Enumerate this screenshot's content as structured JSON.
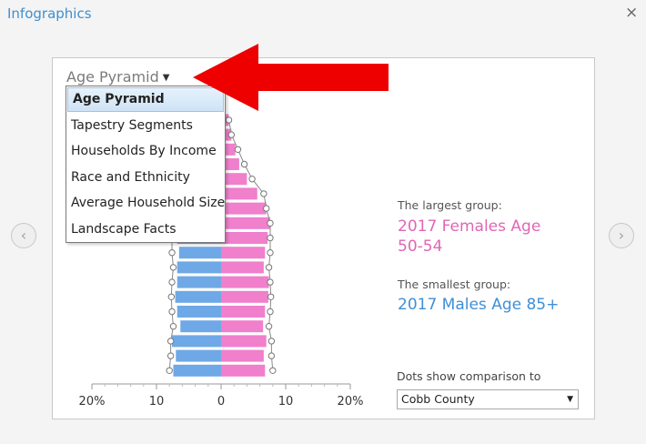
{
  "window": {
    "title": "Infographics",
    "close_glyph": "×"
  },
  "nav": {
    "prev_glyph": "‹",
    "next_glyph": "›"
  },
  "selector": {
    "value": "Age Pyramid",
    "caret": "▼"
  },
  "dropdown": {
    "options": [
      "Age Pyramid",
      "Tapestry Segments",
      "Households By Income",
      "Race and Ethnicity",
      "Average Household Size",
      "Landscape Facts"
    ],
    "selected_index": 0
  },
  "stats": {
    "largest_label": "The largest group:",
    "largest_value_line1": "2017 Females Age",
    "largest_value_line2": "50-54",
    "smallest_label": "The smallest group:",
    "smallest_value": "2017 Males Age 85+"
  },
  "comparison": {
    "label": "Dots show comparison to",
    "value": "Cobb County",
    "caret": "▼"
  },
  "chart_data": {
    "type": "bar",
    "subtype": "population-pyramid",
    "x_ticks": [
      "20%",
      "10",
      "0",
      "10",
      "20%"
    ],
    "xlim": [
      -20,
      20
    ],
    "series": [
      {
        "name": "Males",
        "color": "#6fa8e6",
        "values": [
          7.4,
          7.0,
          7.6,
          6.3,
          6.8,
          7.1,
          6.8,
          6.8,
          6.5,
          6.8,
          6.0,
          5.6,
          4.4,
          3.4,
          2.6,
          2.0,
          1.2,
          0.8
        ]
      },
      {
        "name": "Females",
        "color": "#f07fcc",
        "values": [
          6.8,
          6.6,
          7.0,
          6.5,
          6.8,
          7.3,
          7.4,
          6.6,
          6.8,
          7.2,
          7.6,
          7.0,
          5.6,
          4.0,
          2.8,
          2.2,
          1.6,
          1.2
        ]
      },
      {
        "name": "Comparison",
        "color": "#ffffff",
        "values": [
          8.0,
          7.8,
          7.8,
          7.4,
          7.6,
          7.7,
          7.6,
          7.4,
          7.6,
          7.6,
          7.6,
          7.0,
          6.6,
          4.8,
          3.6,
          2.6,
          1.6,
          1.2
        ]
      }
    ]
  }
}
